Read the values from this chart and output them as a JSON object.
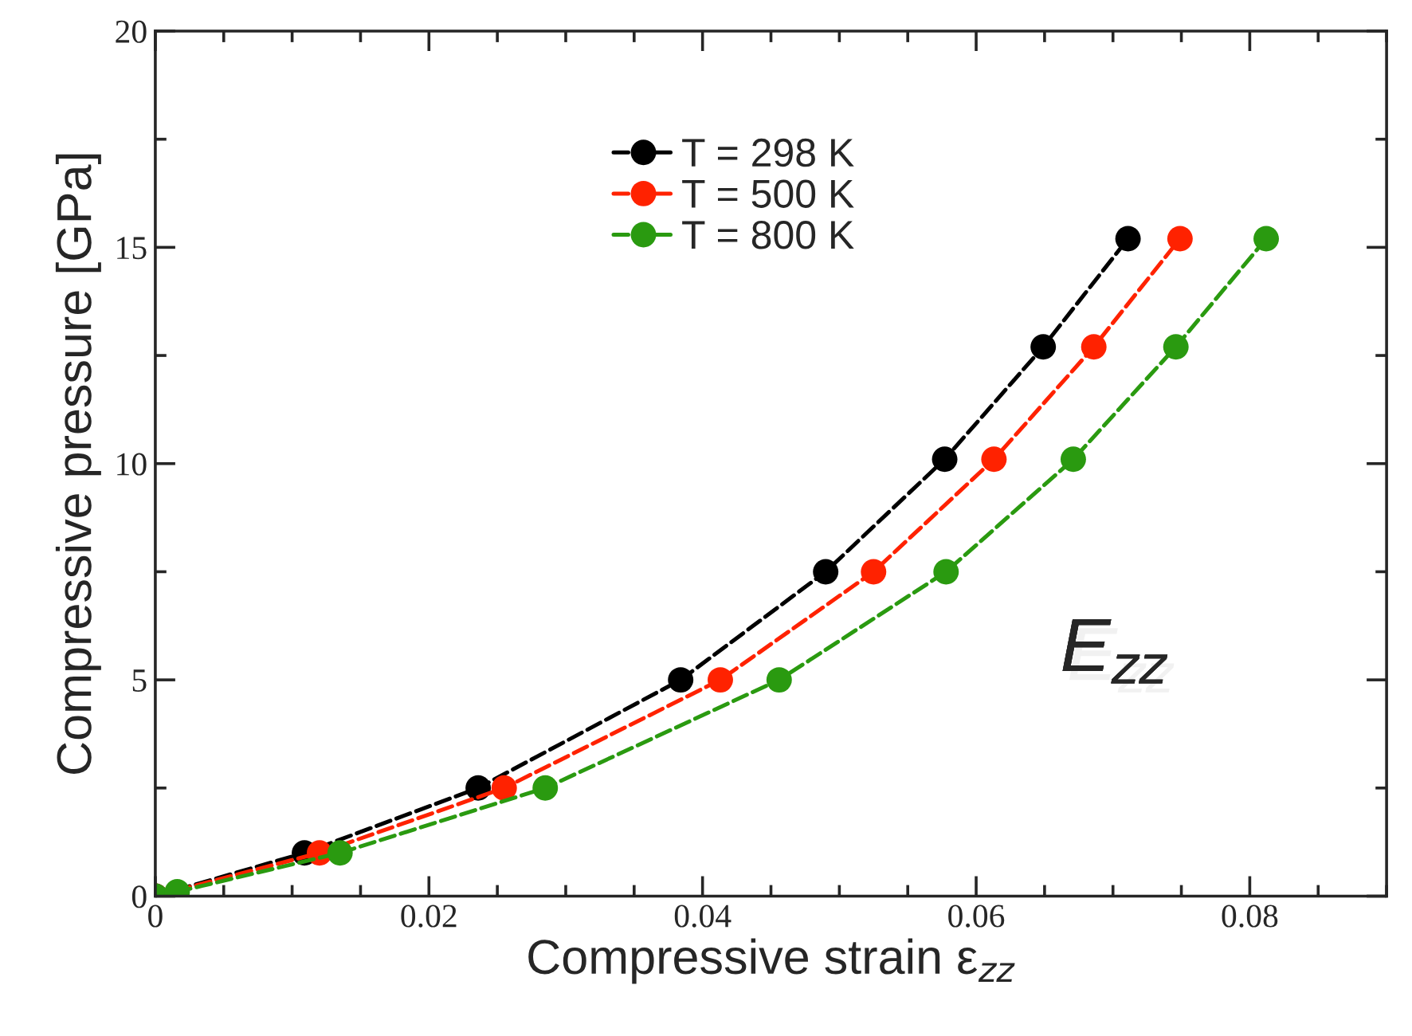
{
  "chart_data": {
    "type": "line",
    "xlabel": "Compressive strain ε$_{zz}$",
    "ylabel": "Compressive pressure [GPa]",
    "xlim": [
      0,
      0.09
    ],
    "xticks": [
      0,
      0.02,
      0.04,
      0.06,
      0.08
    ],
    "ylim": [
      0,
      20
    ],
    "yticks": [
      0,
      5,
      10,
      15,
      20
    ],
    "marker": "circle",
    "line_style": "dashed",
    "legend": "top",
    "grid": false,
    "annotations": [
      "E$_{zz}$"
    ],
    "series": [
      {
        "name": "T = 298 K",
        "color": "#000000",
        "x": [
          0,
          0.0109,
          0.0236,
          0.0384,
          0.049,
          0.0577,
          0.0649,
          0.0711
        ],
        "values": [
          0,
          1.0,
          2.5,
          5.0,
          7.5,
          10.1,
          12.7,
          15.2
        ]
      },
      {
        "name": "T = 500 K",
        "color": "#ff2200",
        "x": [
          0,
          0.0013,
          0.012,
          0.0255,
          0.0413,
          0.0525,
          0.0613,
          0.0686,
          0.0749
        ],
        "values": [
          0,
          null,
          1.0,
          2.5,
          5.0,
          7.5,
          10.1,
          12.7,
          15.2
        ]
      },
      {
        "name": "T = 800 K",
        "color": "#2a9a10",
        "x": [
          0,
          0.0016,
          0.0135,
          0.0285,
          0.0456,
          0.0578,
          0.0671,
          0.0746,
          0.0812
        ],
        "values": [
          0,
          0.1,
          1.0,
          2.5,
          5.0,
          7.5,
          10.1,
          12.7,
          15.2
        ]
      }
    ]
  }
}
